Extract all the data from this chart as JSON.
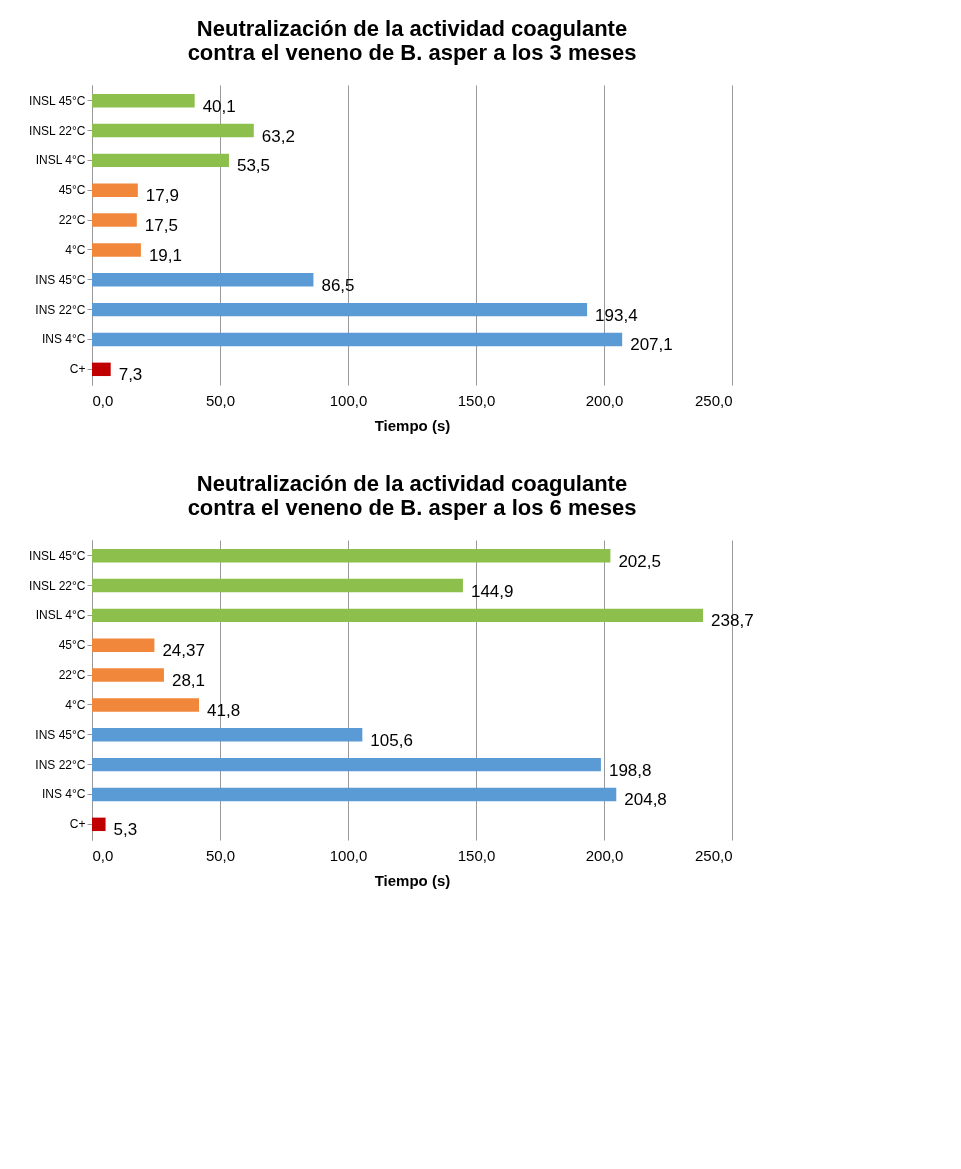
{
  "chart_data": [
    {
      "type": "bar",
      "orientation": "horizontal",
      "title": "Neutralización de la actividad coagulante contra el veneno de B. asper a los 3 meses",
      "xlabel": "Tiempo (s)",
      "categories": [
        "INSL 45°C",
        "INSL 22°C",
        "INSL 4°C",
        "45°C",
        "22°C",
        "4°C",
        "INS 45°C",
        "INS 22°C",
        "INS 4°C",
        "C+"
      ],
      "values": [
        40.1,
        63.2,
        53.5,
        17.9,
        17.5,
        19.1,
        86.5,
        193.4,
        207.1,
        7.3
      ],
      "value_labels": [
        "40,1",
        "63,2",
        "53,5",
        "17,9",
        "17,5",
        "19,1",
        "86,5",
        "193,4",
        "207,1",
        "7,3"
      ],
      "colors": [
        "#8cbf4b",
        "#8cbf4b",
        "#8cbf4b",
        "#f0873a",
        "#f0873a",
        "#f0873a",
        "#5b9bd5",
        "#5b9bd5",
        "#5b9bd5",
        "#c00000"
      ],
      "xlim": [
        0,
        250
      ],
      "xticks": [
        {
          "value": 0,
          "label": "0,0"
        },
        {
          "value": 50,
          "label": "50,0"
        },
        {
          "value": 100,
          "label": "100,0"
        },
        {
          "value": 150,
          "label": "150,0"
        },
        {
          "value": 200,
          "label": "200,0"
        },
        {
          "value": 250,
          "label": "250,0"
        }
      ],
      "grid": "x"
    },
    {
      "type": "bar",
      "orientation": "horizontal",
      "title": "Neutralización de la actividad coagulante contra el veneno de B. asper a los 6 meses",
      "xlabel": "Tiempo (s)",
      "categories": [
        "INSL 45°C",
        "INSL 22°C",
        "INSL 4°C",
        "45°C",
        "22°C",
        "4°C",
        "INS 45°C",
        "INS 22°C",
        "INS 4°C",
        "C+"
      ],
      "values": [
        202.5,
        144.9,
        238.7,
        24.37,
        28.1,
        41.8,
        105.6,
        198.8,
        204.8,
        5.3
      ],
      "value_labels": [
        "202,5",
        "144,9",
        "238,7",
        "24,37",
        "28,1",
        "41,8",
        "105,6",
        "198,8",
        "204,8",
        "5,3"
      ],
      "colors": [
        "#8cbf4b",
        "#8cbf4b",
        "#8cbf4b",
        "#f0873a",
        "#f0873a",
        "#f0873a",
        "#5b9bd5",
        "#5b9bd5",
        "#5b9bd5",
        "#c00000"
      ],
      "xlim": [
        0,
        250
      ],
      "xticks": [
        {
          "value": 0,
          "label": "0,0"
        },
        {
          "value": 50,
          "label": "50,0"
        },
        {
          "value": 100,
          "label": "100,0"
        },
        {
          "value": 150,
          "label": "150,0"
        },
        {
          "value": 200,
          "label": "200,0"
        },
        {
          "value": 250,
          "label": "250,0"
        }
      ],
      "grid": "x"
    }
  ]
}
